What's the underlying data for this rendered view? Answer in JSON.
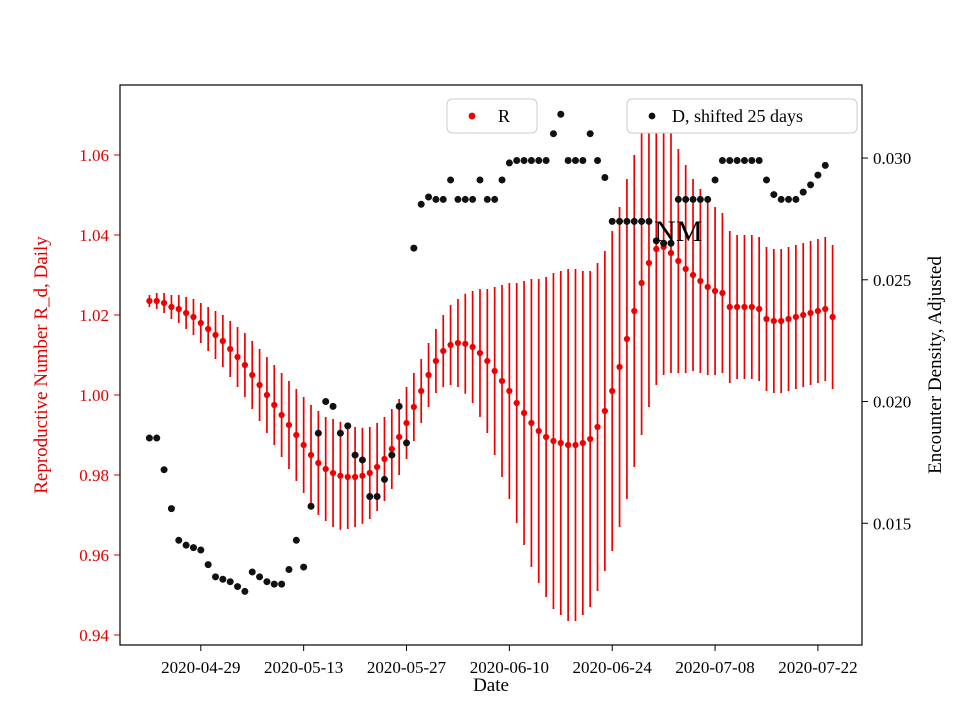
{
  "chart_data": {
    "type": "scatter",
    "title": "",
    "xlabel": "Date",
    "ylabel_left": "Reproductive Number R_d, Daily",
    "ylabel_right": "Encounter Density, Adjusted",
    "x_range": [
      "2020-04-18",
      "2020-07-28"
    ],
    "ylim_left": [
      0.9375,
      1.0775
    ],
    "ylim_right": [
      0.01,
      0.033
    ],
    "grid": false,
    "legend_position": "top",
    "x_ticks": [
      "2020-04-29",
      "2020-05-13",
      "2020-05-27",
      "2020-06-10",
      "2020-06-24",
      "2020-07-08",
      "2020-07-22"
    ],
    "y_ticks_left": [
      "0.94",
      "0.96",
      "0.98",
      "1.00",
      "1.02",
      "1.04",
      "1.06"
    ],
    "y_ticks_right": [
      "0.015",
      "0.020",
      "0.025",
      "0.030"
    ],
    "colors": {
      "left_axis": "#e00000",
      "r_series": "#ee0000",
      "d_series": "#111111"
    },
    "series": [
      {
        "name": "R",
        "axis": "left",
        "marker": "circle-with-errorbars",
        "color": "#ee0000",
        "start_date": "2020-04-22",
        "cadence_days": 1,
        "values": [
          1.0235,
          1.0235,
          1.023,
          1.022,
          1.0215,
          1.0205,
          1.0195,
          1.018,
          1.0165,
          1.015,
          1.0135,
          1.0115,
          1.0095,
          1.0075,
          1.005,
          1.0025,
          1.0,
          0.9975,
          0.995,
          0.9925,
          0.99,
          0.9875,
          0.985,
          0.983,
          0.9815,
          0.9805,
          0.9798,
          0.9795,
          0.9795,
          0.9798,
          0.9805,
          0.982,
          0.984,
          0.9865,
          0.9895,
          0.993,
          0.997,
          1.001,
          1.005,
          1.0085,
          1.011,
          1.0125,
          1.013,
          1.0128,
          1.012,
          1.0105,
          1.0085,
          1.006,
          1.0035,
          1.001,
          0.998,
          0.9955,
          0.993,
          0.991,
          0.9895,
          0.9885,
          0.988,
          0.9875,
          0.9875,
          0.988,
          0.989,
          0.992,
          0.996,
          1.001,
          1.007,
          1.014,
          1.021,
          1.028,
          1.033,
          1.0365,
          1.037,
          1.0355,
          1.0335,
          1.0315,
          1.03,
          1.0285,
          1.027,
          1.026,
          1.0255,
          1.022,
          1.022,
          1.022,
          1.022,
          1.0215,
          1.019,
          1.0185,
          1.0185,
          1.019,
          1.0195,
          1.02,
          1.0205,
          1.021,
          1.0215,
          1.0195
        ],
        "errors": [
          0.0015,
          0.002,
          0.0025,
          0.003,
          0.0035,
          0.004,
          0.0045,
          0.005,
          0.0055,
          0.006,
          0.0065,
          0.007,
          0.0075,
          0.008,
          0.0085,
          0.009,
          0.0095,
          0.01,
          0.0105,
          0.011,
          0.0115,
          0.012,
          0.0125,
          0.013,
          0.013,
          0.0135,
          0.0135,
          0.013,
          0.0125,
          0.012,
          0.0115,
          0.011,
          0.0105,
          0.01,
          0.0095,
          0.009,
          0.0085,
          0.008,
          0.008,
          0.008,
          0.009,
          0.01,
          0.011,
          0.0125,
          0.014,
          0.016,
          0.018,
          0.021,
          0.024,
          0.027,
          0.03,
          0.033,
          0.036,
          0.038,
          0.04,
          0.042,
          0.043,
          0.044,
          0.044,
          0.043,
          0.042,
          0.041,
          0.04,
          0.04,
          0.04,
          0.04,
          0.039,
          0.038,
          0.036,
          0.034,
          0.032,
          0.03,
          0.028,
          0.026,
          0.024,
          0.023,
          0.022,
          0.021,
          0.02,
          0.019,
          0.018,
          0.018,
          0.018,
          0.018,
          0.018,
          0.018,
          0.018,
          0.018,
          0.018,
          0.018,
          0.018,
          0.018,
          0.018,
          0.018
        ]
      },
      {
        "name": "D, shifted 25 days",
        "axis": "right",
        "marker": "circle",
        "color": "#111111",
        "start_date": "2020-04-22",
        "cadence_days": 1,
        "values": [
          0.0185,
          0.0185,
          0.0172,
          0.0156,
          0.0143,
          0.0141,
          0.014,
          0.0139,
          0.0133,
          0.0128,
          0.0127,
          0.0126,
          0.0124,
          0.0122,
          0.013,
          0.0128,
          0.0126,
          0.0125,
          0.0125,
          0.0131,
          0.0143,
          0.0132,
          0.0157,
          0.0187,
          0.02,
          0.0198,
          0.0187,
          0.019,
          0.0178,
          0.0176,
          0.0161,
          0.0161,
          0.0168,
          0.0178,
          0.0198,
          0.0183,
          0.0263,
          0.0281,
          0.0284,
          0.0283,
          0.0283,
          0.0291,
          0.0283,
          0.0283,
          0.0283,
          0.0291,
          0.0283,
          0.0283,
          0.0291,
          0.0298,
          0.0299,
          0.0299,
          0.0299,
          0.0299,
          0.0299,
          0.031,
          0.0318,
          0.0299,
          0.0299,
          0.0299,
          0.031,
          0.0299,
          0.0292,
          0.0274,
          0.0274,
          0.0274,
          0.0274,
          0.0274,
          0.0274,
          0.0266,
          0.0265,
          0.0265,
          0.0283,
          0.0283,
          0.0283,
          0.0283,
          0.0283,
          0.0291,
          0.0299,
          0.0299,
          0.0299,
          0.0299,
          0.0299,
          0.0299,
          0.0291,
          0.0285,
          0.0283,
          0.0283,
          0.0283,
          0.0286,
          0.0289,
          0.0293,
          0.0297
        ]
      }
    ],
    "annotation": {
      "text": "NM",
      "date": "2020-07-03",
      "value_left": 1.041
    }
  }
}
